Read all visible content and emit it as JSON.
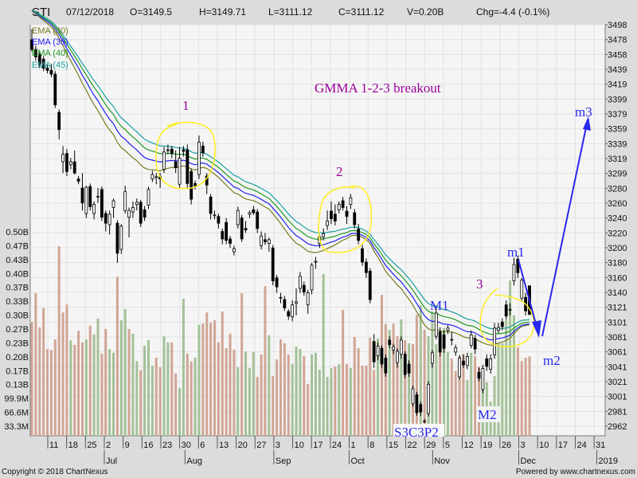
{
  "header": {
    "symbol": "STI",
    "date": "07/12/2018",
    "open": "O=3149.5",
    "high": "H=3149.71",
    "low": "L=3111.12",
    "close": "C=3111.12",
    "volume": "V=0.20B",
    "change": "Chg=-4.4 (-0.1%)"
  },
  "footer": {
    "copyright": "Copyright © 2018 ChartNexus",
    "powered": "Powered by www.chartnexus.com"
  },
  "chart_data": {
    "type": "candlestick",
    "title": "GMMA 1-2-3 breakout",
    "price_axis": {
      "position": "right",
      "range": [
        2962,
        3498
      ],
      "ticks": [
        "3498",
        "3478",
        "3458",
        "3439",
        "3419",
        "3399",
        "3379",
        "3359",
        "3339",
        "3319",
        "3299",
        "3280",
        "3260",
        "3240",
        "3220",
        "3200",
        "3180",
        "3160",
        "3140",
        "3121",
        "3101",
        "3081",
        "3061",
        "3041",
        "3021",
        "3001",
        "2981",
        "2962"
      ]
    },
    "volume_axis": {
      "position": "left",
      "ticks": [
        "0.50B",
        "0.47B",
        "0.43B",
        "0.40B",
        "0.37B",
        "0.33B",
        "0.30B",
        "0.27B",
        "0.23B",
        "0.20B",
        "0.17B",
        "0.13B",
        "99.9M",
        "66.6M",
        "33.3M"
      ]
    },
    "x_ticks": [
      {
        "label": "11",
        "date": "2018-06-11"
      },
      {
        "label": "18",
        "date": "2018-06-18"
      },
      {
        "label": "25",
        "date": "2018-06-25"
      },
      {
        "label": "2",
        "date": "2018-07-02"
      },
      {
        "label": "9",
        "date": "2018-07-09"
      },
      {
        "label": "16",
        "date": "2018-07-16"
      },
      {
        "label": "23",
        "date": "2018-07-23"
      },
      {
        "label": "30",
        "date": "2018-07-30"
      },
      {
        "label": "6",
        "date": "2018-08-06"
      },
      {
        "label": "13",
        "date": "2018-08-13"
      },
      {
        "label": "20",
        "date": "2018-08-20"
      },
      {
        "label": "27",
        "date": "2018-08-27"
      },
      {
        "label": "3",
        "date": "2018-09-03"
      },
      {
        "label": "10",
        "date": "2018-09-10"
      },
      {
        "label": "17",
        "date": "2018-09-17"
      },
      {
        "label": "24",
        "date": "2018-09-24"
      },
      {
        "label": "1",
        "date": "2018-10-01"
      },
      {
        "label": "8",
        "date": "2018-10-08"
      },
      {
        "label": "15",
        "date": "2018-10-15"
      },
      {
        "label": "22",
        "date": "2018-10-22"
      },
      {
        "label": "29",
        "date": "2018-10-29"
      },
      {
        "label": "5",
        "date": "2018-11-05"
      },
      {
        "label": "12",
        "date": "2018-11-12"
      },
      {
        "label": "19",
        "date": "2018-11-19"
      },
      {
        "label": "26",
        "date": "2018-11-26"
      },
      {
        "label": "3",
        "date": "2018-12-03"
      },
      {
        "label": "10",
        "date": "2018-12-10"
      },
      {
        "label": "17",
        "date": "2018-12-17"
      },
      {
        "label": "24",
        "date": "2018-12-24"
      },
      {
        "label": "31",
        "date": "2018-12-31"
      }
    ],
    "month_labels": [
      {
        "label": "Jul",
        "date": "2018-07-02"
      },
      {
        "label": "Aug",
        "date": "2018-08-01"
      },
      {
        "label": "Sep",
        "date": "2018-09-03"
      },
      {
        "label": "Oct",
        "date": "2018-10-01"
      },
      {
        "label": "Nov",
        "date": "2018-11-01"
      },
      {
        "label": "Dec",
        "date": "2018-12-03"
      },
      {
        "label": "2019",
        "date": "2019-01-01"
      }
    ],
    "grid": true,
    "legend": {
      "placement": "top-left",
      "items": [
        {
          "name": "EMA (30)",
          "period": 30,
          "color": "#7a7a20"
        },
        {
          "name": "EMA (35)",
          "period": 35,
          "color": "#2222ee"
        },
        {
          "name": "EMA (40)",
          "period": 40,
          "color": "#1f9a1f"
        },
        {
          "name": "EMA (45)",
          "period": 45,
          "color": "#1aa0a0"
        }
      ]
    },
    "colors": {
      "volume_up": "#a3c197",
      "volume_down": "#d1a594",
      "annotation_purple": "#990099",
      "annotation_blue": "#2828ee",
      "highlight": "#ffee22"
    },
    "last_date": "2018-12-07",
    "candles_ohlc": [
      [
        3478,
        3492,
        3462,
        3465
      ],
      [
        3465,
        3470,
        3450,
        3455
      ],
      [
        3458,
        3462,
        3440,
        3445
      ],
      [
        3452,
        3456,
        3436,
        3440
      ],
      [
        3440,
        3445,
        3433,
        3437
      ],
      [
        3437,
        3446,
        3428,
        3432
      ],
      [
        3432,
        3436,
        3387,
        3391
      ],
      [
        3381,
        3385,
        3345,
        3358
      ],
      [
        3315,
        3336,
        3300,
        3325
      ],
      [
        3326,
        3332,
        3296,
        3302
      ],
      [
        3311,
        3320,
        3305,
        3315
      ],
      [
        3315,
        3330,
        3298,
        3300
      ],
      [
        3292,
        3296,
        3285,
        3289
      ],
      [
        3280,
        3300,
        3250,
        3260
      ],
      [
        3246,
        3283,
        3240,
        3281
      ],
      [
        3282,
        3286,
        3250,
        3255
      ],
      [
        3246,
        3262,
        3238,
        3258
      ],
      [
        3269,
        3280,
        3260,
        3269
      ],
      [
        3278,
        3282,
        3236,
        3241
      ],
      [
        3246,
        3250,
        3222,
        3233
      ],
      [
        3231,
        3250,
        3218,
        3245
      ],
      [
        3254,
        3266,
        3240,
        3263
      ],
      [
        3233,
        3237,
        3180,
        3193
      ],
      [
        3198,
        3232,
        3192,
        3229
      ],
      [
        3250,
        3283,
        3246,
        3275
      ],
      [
        3241,
        3254,
        3214,
        3250
      ],
      [
        3248,
        3262,
        3240,
        3254
      ],
      [
        3258,
        3266,
        3250,
        3261
      ],
      [
        3261,
        3264,
        3228,
        3233
      ],
      [
        3251,
        3256,
        3236,
        3241
      ],
      [
        3257,
        3282,
        3252,
        3278
      ],
      [
        3292,
        3303,
        3288,
        3298
      ],
      [
        3295,
        3300,
        3285,
        3295
      ],
      [
        3295,
        3300,
        3280,
        3292
      ],
      [
        3305,
        3335,
        3300,
        3328
      ],
      [
        3331,
        3338,
        3325,
        3331
      ],
      [
        3332,
        3336,
        3320,
        3326
      ],
      [
        3315,
        3330,
        3300,
        3307
      ],
      [
        3285,
        3335,
        3280,
        3320
      ],
      [
        3331,
        3336,
        3322,
        3329
      ],
      [
        3331,
        3338,
        3280,
        3286
      ],
      [
        3302,
        3306,
        3258,
        3265
      ],
      [
        3286,
        3290,
        3278,
        3283
      ],
      [
        3298,
        3350,
        3292,
        3341
      ],
      [
        3336,
        3342,
        3322,
        3327
      ],
      [
        3296,
        3300,
        3272,
        3284
      ],
      [
        3268,
        3272,
        3238,
        3246
      ],
      [
        3244,
        3250,
        3238,
        3244
      ],
      [
        3242,
        3246,
        3226,
        3233
      ],
      [
        3222,
        3226,
        3205,
        3212
      ],
      [
        3234,
        3240,
        3205,
        3210
      ],
      [
        3212,
        3216,
        3200,
        3206
      ],
      [
        3195,
        3203,
        3190,
        3199
      ],
      [
        3231,
        3255,
        3226,
        3250
      ],
      [
        3240,
        3244,
        3208,
        3212
      ],
      [
        3226,
        3236,
        3220,
        3224
      ],
      [
        3245,
        3250,
        3240,
        3247
      ],
      [
        3251,
        3256,
        3244,
        3247
      ],
      [
        3248,
        3252,
        3220,
        3226
      ],
      [
        3203,
        3222,
        3198,
        3216
      ],
      [
        3211,
        3220,
        3204,
        3208
      ],
      [
        3206,
        3214,
        3195,
        3211
      ],
      [
        3200,
        3204,
        3150,
        3156
      ],
      [
        3160,
        3164,
        3140,
        3148
      ],
      [
        3134,
        3140,
        3126,
        3134
      ],
      [
        3131,
        3136,
        3116,
        3120
      ],
      [
        3115,
        3118,
        3104,
        3109
      ],
      [
        3108,
        3130,
        3102,
        3124
      ],
      [
        3126,
        3146,
        3110,
        3128
      ],
      [
        3146,
        3168,
        3140,
        3162
      ],
      [
        3150,
        3155,
        3136,
        3141
      ],
      [
        3124,
        3144,
        3112,
        3140
      ],
      [
        3144,
        3180,
        3138,
        3177
      ],
      [
        3181,
        3188,
        3172,
        3182
      ],
      [
        3206,
        3218,
        3200,
        3215
      ],
      [
        3215,
        3226,
        3210,
        3219
      ],
      [
        3230,
        3250,
        3224,
        3236
      ],
      [
        3249,
        3262,
        3232,
        3239
      ],
      [
        3245,
        3258,
        3230,
        3236
      ],
      [
        3251,
        3262,
        3246,
        3258
      ],
      [
        3263,
        3268,
        3250,
        3254
      ],
      [
        3249,
        3256,
        3232,
        3242
      ],
      [
        3258,
        3272,
        3252,
        3267
      ],
      [
        3247,
        3252,
        3226,
        3231
      ],
      [
        3225,
        3232,
        3205,
        3210
      ],
      [
        3199,
        3204,
        3176,
        3181
      ],
      [
        3181,
        3186,
        3160,
        3167
      ],
      [
        3169,
        3173,
        3126,
        3131
      ],
      [
        3075,
        3085,
        3040,
        3048
      ],
      [
        3056,
        3074,
        3050,
        3069
      ],
      [
        3066,
        3070,
        3040,
        3045
      ],
      [
        3053,
        3058,
        3028,
        3033
      ],
      [
        3077,
        3082,
        3066,
        3071
      ],
      [
        3064,
        3072,
        3058,
        3068
      ],
      [
        3047,
        3066,
        3040,
        3062
      ],
      [
        3058,
        3082,
        3052,
        3077
      ],
      [
        3058,
        3062,
        3026,
        3031
      ],
      [
        3045,
        3050,
        3028,
        3033
      ],
      [
        2992,
        3016,
        2988,
        3012
      ],
      [
        3004,
        3008,
        2976,
        2980
      ],
      [
        2991,
        2995,
        2976,
        2981
      ],
      [
        2969,
        2972,
        2966,
        2969
      ],
      [
        2979,
        3022,
        2975,
        3018
      ],
      [
        3046,
        3064,
        3040,
        3060
      ],
      [
        3082,
        3122,
        3078,
        3113
      ],
      [
        3088,
        3094,
        3055,
        3061
      ],
      [
        3084,
        3090,
        3060,
        3066
      ],
      [
        3090,
        3097,
        3085,
        3093
      ],
      [
        3078,
        3088,
        3070,
        3078
      ],
      [
        3061,
        3071,
        3056,
        3067
      ],
      [
        3028,
        3057,
        3024,
        3053
      ],
      [
        3049,
        3058,
        3040,
        3044
      ],
      [
        3043,
        3060,
        3038,
        3055
      ],
      [
        3070,
        3090,
        3066,
        3084
      ],
      [
        3079,
        3084,
        3058,
        3065
      ],
      [
        3034,
        3040,
        3022,
        3026
      ],
      [
        3011,
        3044,
        3006,
        3039
      ],
      [
        3052,
        3058,
        3036,
        3042
      ],
      [
        3038,
        3058,
        3032,
        3052
      ],
      [
        3057,
        3100,
        3052,
        3093
      ],
      [
        3090,
        3100,
        3086,
        3094
      ],
      [
        3101,
        3106,
        3090,
        3095
      ],
      [
        3124,
        3130,
        3104,
        3109
      ],
      [
        3118,
        3126,
        3110,
        3118
      ],
      [
        3156,
        3187,
        3150,
        3178
      ],
      [
        3185,
        3190,
        3160,
        3167
      ],
      [
        3133,
        3160,
        3128,
        3157
      ],
      [
        3134,
        3140,
        3110,
        3116
      ],
      [
        3149.5,
        3149.71,
        3111.12,
        3111.12
      ]
    ],
    "volume_millions": [
      283,
      352,
      270,
      316,
      218,
      216,
      241,
      465,
      306,
      325,
      239,
      228,
      262,
      234,
      241,
      274,
      253,
      291,
      207,
      266,
      218,
      209,
      392,
      287,
      314,
      266,
      255,
      189,
      167,
      226,
      239,
      178,
      197,
      174,
      249,
      234,
      234,
      159,
      124,
      339,
      207,
      188,
      197,
      276,
      279,
      306,
      281,
      287,
      234,
      308,
      220,
      255,
      216,
      174,
      352,
      212,
      172,
      211,
      151,
      205,
      369,
      251,
      153,
      193,
      241,
      232,
      205,
      182,
      224,
      218,
      201,
      134,
      205,
      209,
      168,
      398,
      151,
      172,
      176,
      182,
      312,
      182,
      172,
      247,
      220,
      178,
      178,
      245,
      168,
      243,
      348,
      278,
      264,
      279,
      249,
      289,
      239,
      232,
      230,
      300,
      323,
      264,
      249,
      308,
      230,
      212,
      268,
      211,
      195,
      165,
      201,
      205,
      144,
      209,
      201,
      176,
      172,
      138,
      92,
      153,
      232,
      232,
      287,
      383,
      299,
      222,
      189,
      197,
      200
    ],
    "annotations": {
      "title": "GMMA 1-2-3 breakout",
      "one": "1",
      "two": "2",
      "three": "3",
      "M1": "M1",
      "m1": "m1",
      "m2": "m2",
      "m3": "m3",
      "M2": "M2",
      "pattern": "S3C3P2"
    }
  }
}
